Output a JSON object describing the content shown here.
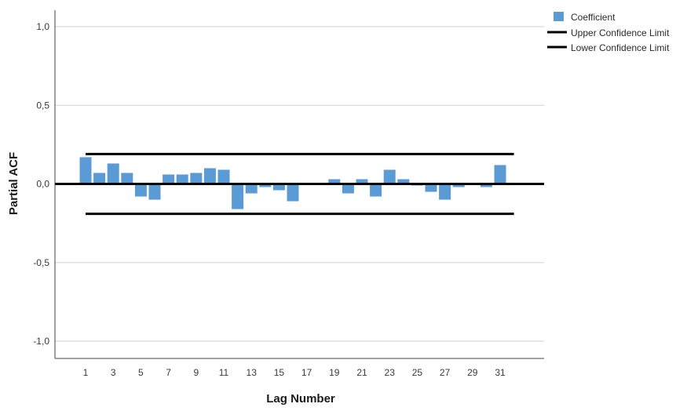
{
  "chart_data": {
    "type": "bar",
    "xlabel": "Lag Number",
    "ylabel": "Partial ACF",
    "ylim": [
      -1.1,
      1.1
    ],
    "y_ticks": [
      "1,0",
      "0,5",
      "0,0",
      "-0,5",
      "-1,0"
    ],
    "y_tick_values": [
      1.0,
      0.5,
      0.0,
      -0.5,
      -1.0
    ],
    "x_tick_labels": [
      "1",
      "3",
      "5",
      "7",
      "9",
      "11",
      "13",
      "15",
      "17",
      "19",
      "21",
      "23",
      "25",
      "27",
      "29",
      "31"
    ],
    "lags": [
      1,
      2,
      3,
      4,
      5,
      6,
      7,
      8,
      9,
      10,
      11,
      12,
      13,
      14,
      15,
      16,
      17,
      18,
      19,
      20,
      21,
      22,
      23,
      24,
      25,
      26,
      27,
      28,
      29,
      30,
      31,
      32
    ],
    "series": [
      {
        "name": "Coefficient",
        "color": "#5b9bd5",
        "values": [
          0.17,
          0.07,
          0.13,
          0.07,
          -0.08,
          -0.1,
          0.06,
          0.06,
          0.07,
          0.1,
          0.09,
          -0.16,
          -0.06,
          -0.02,
          -0.04,
          -0.11,
          0.0,
          0.0,
          0.03,
          -0.06,
          0.03,
          -0.08,
          0.09,
          0.03,
          -0.01,
          -0.05,
          -0.1,
          -0.02,
          0.0,
          -0.02,
          0.12,
          0.0
        ]
      }
    ],
    "confidence_limits": {
      "upper": 0.19,
      "lower": -0.19,
      "upper_name": "Upper Confidence Limit",
      "lower_name": "Lower Confidence Limit",
      "color": "#000000"
    },
    "grid": true,
    "legend_position": "top-right"
  },
  "legend": {
    "coefficient": "Coefficient",
    "upper": "Upper Confidence Limit",
    "lower": "Lower Confidence Limit"
  }
}
